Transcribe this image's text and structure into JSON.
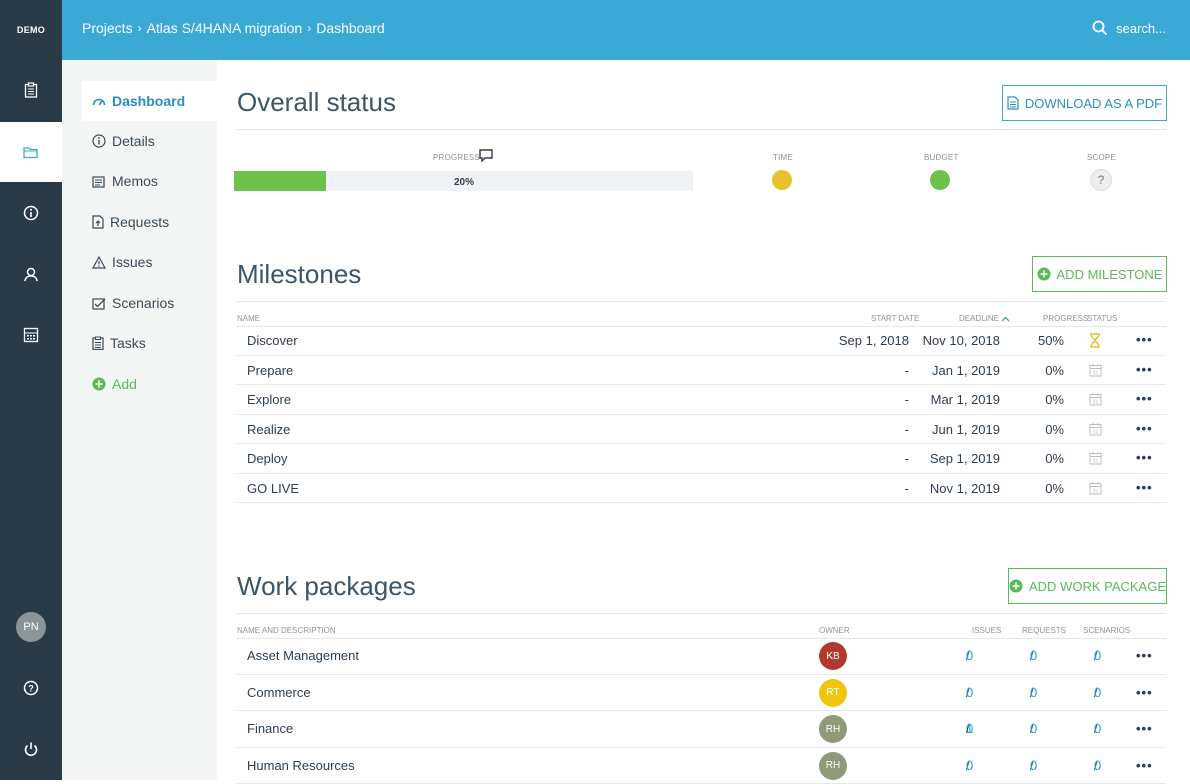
{
  "rail": {
    "demo_label": "DEMO",
    "user_initials": "PN"
  },
  "header": {
    "breadcrumbs": [
      "Projects",
      "Atlas S/4HANA migration",
      "Dashboard"
    ],
    "search_placeholder": "search..."
  },
  "sidebar": {
    "items": [
      {
        "label": "Dashboard",
        "icon": "gauge-icon",
        "active": true
      },
      {
        "label": "Details",
        "icon": "info-icon"
      },
      {
        "label": "Memos",
        "icon": "memo-icon"
      },
      {
        "label": "Requests",
        "icon": "request-icon"
      },
      {
        "label": "Issues",
        "icon": "warning-icon"
      },
      {
        "label": "Scenarios",
        "icon": "scenario-icon"
      },
      {
        "label": "Tasks",
        "icon": "clipboard-icon"
      },
      {
        "label": "Add",
        "icon": "plus-circle-icon"
      }
    ]
  },
  "overall": {
    "title": "Overall status",
    "download_label": "DOWNLOAD AS A PDF",
    "progress_label": "PROGRESS",
    "progress_value": "20%",
    "progress_fraction": 0.2,
    "time_label": "TIME",
    "budget_label": "BUDGET",
    "scope_label": "SCOPE",
    "time_color": "#e8c22e",
    "budget_color": "#6cc24a",
    "scope_symbol": "?"
  },
  "milestones": {
    "title": "Milestones",
    "add_label": "ADD MILESTONE",
    "columns": {
      "name": "NAME",
      "start": "START DATE",
      "deadline": "DEADLINE",
      "progress": "PROGRESS",
      "status": "STATUS"
    },
    "rows": [
      {
        "name": "Discover",
        "start": "Sep 1, 2018",
        "deadline": "Nov 10, 2018",
        "progress": "50%",
        "status": "hourglass-icon"
      },
      {
        "name": "Prepare",
        "start": "-",
        "deadline": "Jan 1, 2019",
        "progress": "0%",
        "status": "calendar-icon"
      },
      {
        "name": "Explore",
        "start": "-",
        "deadline": "Mar 1, 2019",
        "progress": "0%",
        "status": "calendar-icon"
      },
      {
        "name": "Realize",
        "start": "-",
        "deadline": "Jun 1, 2019",
        "progress": "0%",
        "status": "calendar-icon"
      },
      {
        "name": "Deploy",
        "start": "-",
        "deadline": "Sep 1, 2019",
        "progress": "0%",
        "status": "calendar-icon"
      },
      {
        "name": "GO LIVE",
        "start": "-",
        "deadline": "Nov 1, 2019",
        "progress": "0%",
        "status": "calendar-icon"
      }
    ]
  },
  "work_packages": {
    "title": "Work packages",
    "add_label": "ADD WORK PACKAGE",
    "columns": {
      "name": "NAME AND DESCRIPTION",
      "owner": "OWNER",
      "issues": "ISSUES",
      "requests": "REQUESTS",
      "scenarios": "SCENARIOS"
    },
    "rows": [
      {
        "name": "Asset Management",
        "owner": "KB",
        "owner_color": "#b03a2e",
        "issues": [
          "0",
          "0"
        ],
        "requests": [
          "0",
          "0"
        ],
        "scenarios": [
          "0",
          "0"
        ]
      },
      {
        "name": "Commerce",
        "owner": "RT",
        "owner_color": "#f1c40f",
        "issues": [
          "0",
          "0"
        ],
        "requests": [
          "0",
          "0"
        ],
        "scenarios": [
          "0",
          "0"
        ]
      },
      {
        "name": "Finance",
        "owner": "RH",
        "owner_color": "#8e9a7a",
        "issues": [
          "0",
          "1"
        ],
        "requests": [
          "0",
          "0"
        ],
        "scenarios": [
          "0",
          "0"
        ]
      },
      {
        "name": "Human Resources",
        "owner": "RH",
        "owner_color": "#8e9a7a",
        "issues": [
          "0",
          "0"
        ],
        "requests": [
          "0",
          "0"
        ],
        "scenarios": [
          "0",
          "0"
        ]
      }
    ]
  }
}
